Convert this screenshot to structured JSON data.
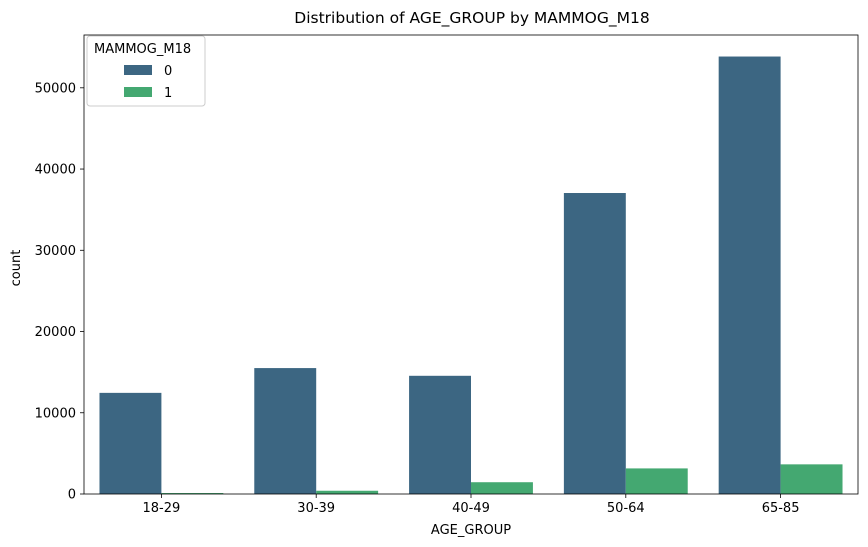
{
  "chart_data": {
    "type": "bar",
    "title": "Distribution of AGE_GROUP by MAMMOG_M18",
    "xlabel": "AGE_GROUP",
    "ylabel": "count",
    "categories": [
      "18-29",
      "30-39",
      "40-49",
      "50-64",
      "65-85"
    ],
    "series": [
      {
        "name": "0",
        "color": "#3c6682",
        "values": [
          12450,
          15500,
          14550,
          37050,
          53850
        ]
      },
      {
        "name": "1",
        "color": "#44a871",
        "values": [
          120,
          400,
          1450,
          3150,
          3650
        ]
      }
    ],
    "ylim": [
      0,
      56500
    ],
    "yticks": [
      0,
      10000,
      20000,
      30000,
      40000,
      50000
    ],
    "legend": {
      "title": "MAMMOG_M18",
      "placement": "top-left"
    },
    "grid": false
  }
}
